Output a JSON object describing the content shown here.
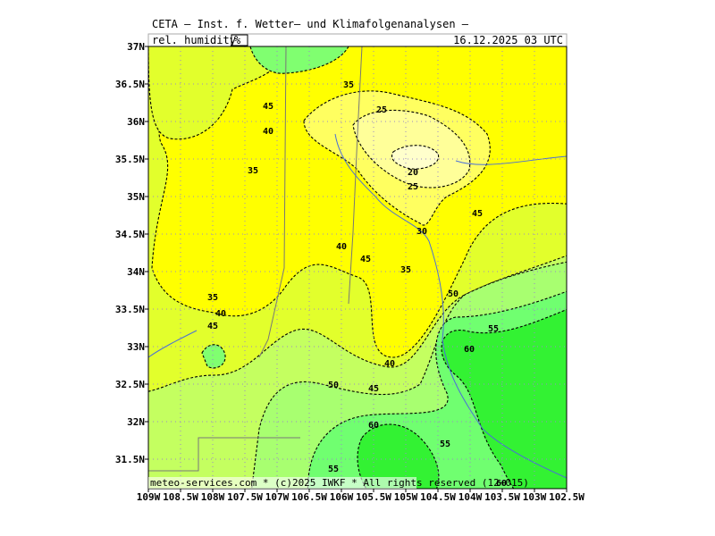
{
  "header": {
    "title": "CETA — Inst. f. Wetter— und Klimafolgenanalysen —",
    "parameter": "rel. humidity",
    "unit": "%",
    "datetime": "16.12.2025 03 UTC"
  },
  "axes": {
    "lat_labels": [
      "37N",
      "36.5N",
      "36N",
      "35.5N",
      "35N",
      "34.5N",
      "34N",
      "33.5N",
      "33N",
      "32.5N",
      "32N",
      "31.5N"
    ],
    "lon_labels": [
      "109W",
      "108.5W",
      "108W",
      "107.5W",
      "107W",
      "106.5W",
      "106W",
      "105.5W",
      "105W",
      "104.5W",
      "104W",
      "103.5W",
      "103W",
      "102.5W"
    ]
  },
  "contour_labels": [
    45,
    35,
    40,
    25,
    35,
    20,
    25,
    30,
    45,
    40,
    45,
    35,
    35,
    40,
    50,
    45,
    55,
    60,
    40,
    50,
    45,
    60,
    55,
    55,
    60
  ],
  "footer": "meteo-services.com * (c)2025 IWKF * All rights reserved (12+015)"
}
